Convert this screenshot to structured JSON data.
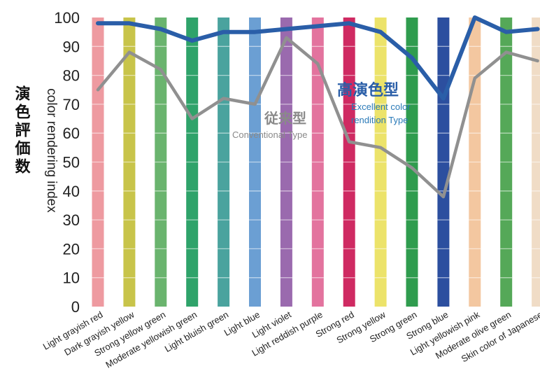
{
  "chart_data": {
    "type": "line",
    "ylabel": "color rendering index",
    "ylabel_jp": "演色評価数",
    "ylim": [
      0,
      100
    ],
    "yticks": [
      "0",
      "10",
      "20",
      "30",
      "40",
      "50",
      "60",
      "70",
      "80",
      "90",
      "100"
    ],
    "grid": false,
    "categories": [
      "Light grayish red",
      "Dark grayish yellow",
      "Strong yellow green",
      "Moderate yellowish green",
      "Light bluish green",
      "Light blue",
      "Light violet",
      "Light reddish purple",
      "Strong red",
      "Strong yellow",
      "Strong green",
      "Strong blue",
      "Light yellowish pink",
      "Moderate olive green",
      "Skin color of Japanese"
    ],
    "category_colors": [
      "#ee9aa0",
      "#c8c44a",
      "#6ab46e",
      "#2fa36a",
      "#4aa39e",
      "#6b9fd3",
      "#9a6aae",
      "#e3739e",
      "#cf2a62",
      "#ece36a",
      "#2f9c4e",
      "#2c4f9f",
      "#f3c7a0",
      "#55a858",
      "#f0dcc6"
    ],
    "series": [
      {
        "values": [
          98,
          98,
          96,
          92,
          95,
          95,
          96,
          97,
          98,
          95,
          86,
          72,
          100,
          95,
          96
        ],
        "color": "#2a5ea8"
      },
      {
        "values": [
          75,
          88,
          82,
          65,
          72,
          70,
          93,
          84,
          57,
          55,
          48,
          38,
          79,
          88,
          85
        ],
        "color": "#909090"
      }
    ],
    "annotations": [
      {
        "text": "高演色型",
        "color": "#2a5ea8"
      },
      {
        "text": "Excellent color",
        "color": "#2a7ab8"
      },
      {
        "text": "rendition Type",
        "color": "#2a7ab8"
      },
      {
        "text": "従来型",
        "color": "#8a8a8a"
      },
      {
        "text": "Conventional Type",
        "color": "#8a8a8a"
      }
    ]
  }
}
